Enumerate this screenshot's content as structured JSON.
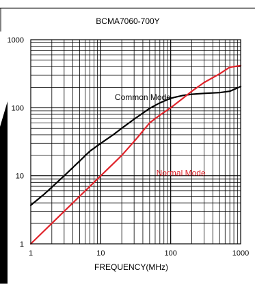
{
  "chart_data": {
    "type": "line",
    "title": "BCMA7060-700Y",
    "xlabel": "FREQUENCY(MHz)",
    "ylabel": "",
    "x_scale": "log",
    "y_scale": "log",
    "xlim": [
      1,
      1000
    ],
    "ylim": [
      1,
      1000
    ],
    "grid": true,
    "x_ticks": [
      {
        "value": 1,
        "label": "1"
      },
      {
        "value": 10,
        "label": "10"
      },
      {
        "value": 100,
        "label": "100"
      },
      {
        "value": 1000,
        "label": "1000"
      }
    ],
    "y_ticks": [
      {
        "value": 1,
        "label": "1"
      },
      {
        "value": 10,
        "label": "10"
      },
      {
        "value": 100,
        "label": "100"
      },
      {
        "value": 1000,
        "label": "1000"
      }
    ],
    "series": [
      {
        "name": "Common Mode",
        "color": "#000000",
        "points": [
          [
            1,
            3.7
          ],
          [
            1.5,
            5.2
          ],
          [
            2,
            6.8
          ],
          [
            3,
            10
          ],
          [
            5,
            16.5
          ],
          [
            7,
            23
          ],
          [
            10,
            30
          ],
          [
            15,
            40
          ],
          [
            20,
            50
          ],
          [
            30,
            68
          ],
          [
            50,
            98
          ],
          [
            70,
            118
          ],
          [
            100,
            138
          ],
          [
            150,
            152
          ],
          [
            200,
            158
          ],
          [
            300,
            163
          ],
          [
            500,
            167
          ],
          [
            700,
            175
          ],
          [
            1000,
            205
          ]
        ]
      },
      {
        "name": "Normal Mode",
        "color": "#e0242b",
        "points": [
          [
            1,
            1.0
          ],
          [
            1.5,
            1.5
          ],
          [
            2,
            2.0
          ],
          [
            3,
            3.0
          ],
          [
            5,
            5.0
          ],
          [
            7,
            7.0
          ],
          [
            10,
            10
          ],
          [
            15,
            15
          ],
          [
            20,
            20
          ],
          [
            30,
            32
          ],
          [
            50,
            60
          ],
          [
            70,
            78
          ],
          [
            100,
            100
          ],
          [
            150,
            138
          ],
          [
            200,
            175
          ],
          [
            300,
            235
          ],
          [
            500,
            315
          ],
          [
            700,
            395
          ],
          [
            1000,
            415
          ]
        ]
      }
    ],
    "annotations": [
      {
        "text": "Common Mode",
        "color": "#000000",
        "x": 40,
        "y": 130
      },
      {
        "text": "Normal Mode",
        "color": "#e0242b",
        "x": 140,
        "y": 10
      }
    ]
  }
}
